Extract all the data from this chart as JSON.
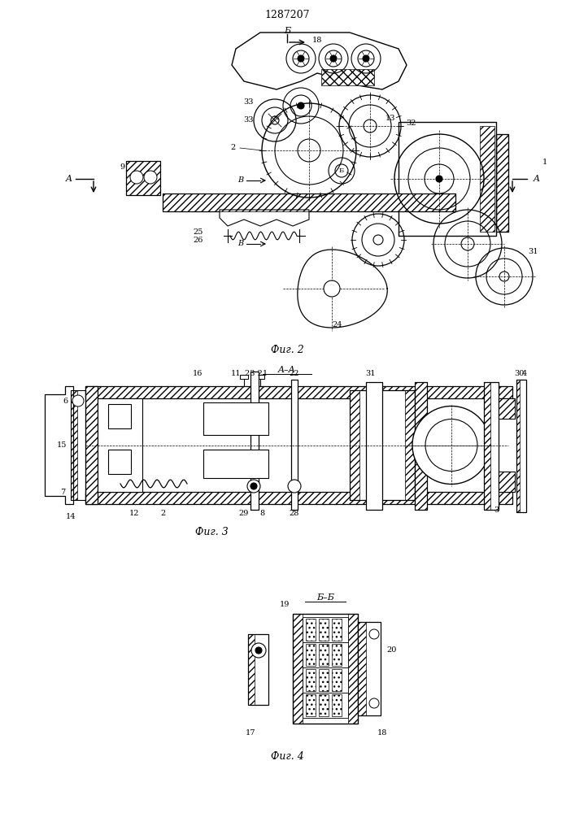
{
  "title": "1287207",
  "bg": "#ffffff",
  "fig_width": 7.07,
  "fig_height": 10.0,
  "dpi": 100,
  "fig2_label": "Фиг. 2",
  "fig3_label": "Фиг. 3",
  "fig4_label": "Фиг. 4",
  "sec_AA": "A–A",
  "sec_BB": "Б–Б"
}
